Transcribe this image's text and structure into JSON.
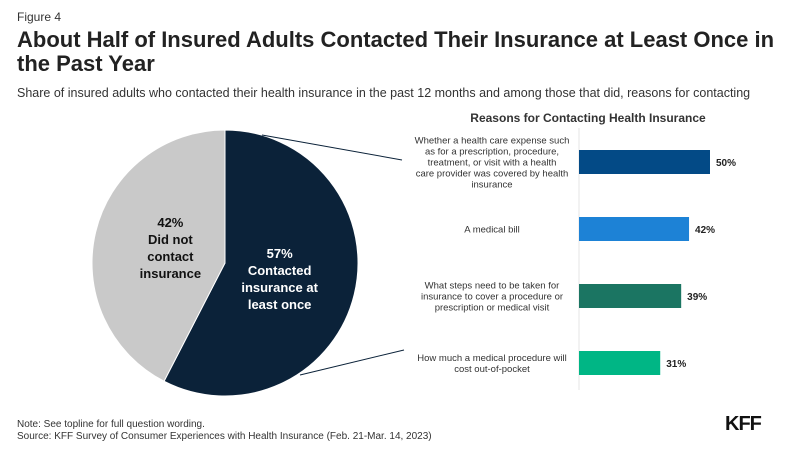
{
  "figure_label": "Figure 4",
  "title": "About Half of Insured Adults Contacted Their Insurance at Least Once in the Past Year",
  "subtitle": "Share of insured adults who contacted their health insurance in the past 12 months and among those that did, reasons for contacting",
  "note": "Note: See topline for full question wording.",
  "source": "Source: KFF Survey of Consumer Experiences with Health Insurance (Feb. 21-Mar. 14, 2023)",
  "logo": "KFF",
  "chart_data": [
    {
      "type": "pie",
      "slices": [
        {
          "label": "Contacted insurance at least once",
          "value": 57,
          "value_label": "57%",
          "color": "#0b2239"
        },
        {
          "label": "Did not contact insurance",
          "value": 42,
          "value_label": "42%",
          "color": "#c9c9c9"
        }
      ]
    },
    {
      "type": "bar",
      "orientation": "horizontal",
      "title": "Reasons for Contacting Health Insurance",
      "categories": [
        "Whether a health care expense such as for a prescription, procedure, treatment, or visit with a health care provider was covered by health insurance",
        "A medical bill",
        "What steps need to be taken for insurance to cover a procedure or prescription or medical visit",
        "How much a medical procedure will cost out-of-pocket"
      ],
      "values": [
        50,
        42,
        39,
        31
      ],
      "value_labels": [
        "50%",
        "42%",
        "39%",
        "31%"
      ],
      "colors": [
        "#034a86",
        "#1d82d6",
        "#1b7562",
        "#00b685"
      ]
    }
  ]
}
